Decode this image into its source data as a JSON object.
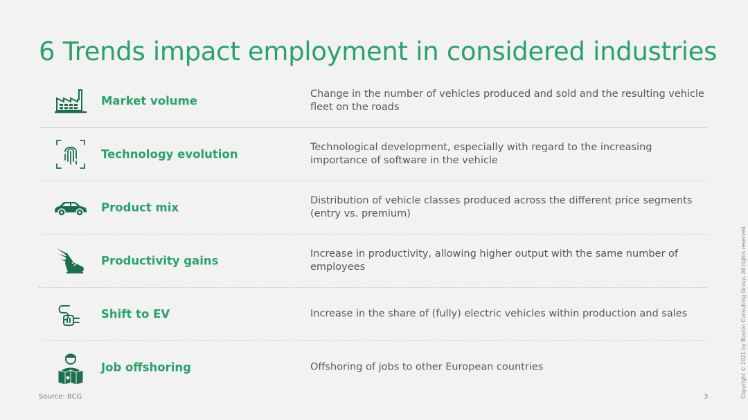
{
  "title": "6 Trends impact employment in considered industries",
  "colors": {
    "accent": "#29a36a",
    "icon": "#1c6e4c",
    "text": "#575757"
  },
  "trends": [
    {
      "icon": "factory-icon",
      "label": "Market volume",
      "description": "Change in the number of vehicles produced and sold and the resulting vehicle fleet on the roads"
    },
    {
      "icon": "fingerprint-icon",
      "label": "Technology evolution",
      "description": "Technological development, especially with regard to the increasing importance of software in the vehicle"
    },
    {
      "icon": "car-icon",
      "label": "Product mix",
      "description": "Distribution of vehicle classes produced across the different price segments (entry vs. premium)"
    },
    {
      "icon": "winged-shoe-icon",
      "label": "Productivity gains",
      "description": "Increase in productivity, allowing higher output with the same number of employees"
    },
    {
      "icon": "ev-plug-icon",
      "label": "Shift to EV",
      "description": "Increase in the share of (fully) electric vehicles within production and sales"
    },
    {
      "icon": "worker-map-icon",
      "label": "Job offshoring",
      "description": "Offshoring of jobs to other European countries"
    }
  ],
  "footer": {
    "source": "Source: BCG",
    "page_number": "3",
    "copyright": "Copyright © 2021 by Boston Consulting Group. All rights reserved."
  }
}
